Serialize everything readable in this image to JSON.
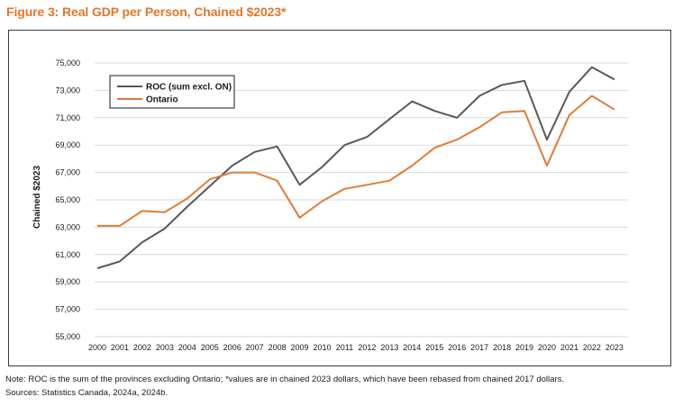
{
  "figure": {
    "title": "Figure 3: Real GDP per Person, Chained $2023*"
  },
  "notes": {
    "note": "Note: ROC is the sum of the provinces excluding Ontario; *values are in chained 2023 dollars, which have been rebased from chained 2017 dollars.",
    "sources": "Sources: Statistics Canada, 2024a, 2024b."
  },
  "chart_data": {
    "type": "line",
    "title": "",
    "xlabel": "",
    "ylabel": "Chained $2023",
    "x": [
      "2000",
      "2001",
      "2002",
      "2003",
      "2004",
      "2005",
      "2006",
      "2007",
      "2008",
      "2009",
      "2010",
      "2011",
      "2012",
      "2013",
      "2014",
      "2015",
      "2016",
      "2017",
      "2018",
      "2019",
      "2020",
      "2021",
      "2022",
      "2023"
    ],
    "ylim": [
      55000,
      75000
    ],
    "yticks": [
      55000,
      57000,
      59000,
      61000,
      63000,
      65000,
      67000,
      69000,
      71000,
      73000,
      75000
    ],
    "ytick_labels": [
      "55,000",
      "57,000",
      "59,000",
      "61,000",
      "63,000",
      "65,000",
      "67,000",
      "69,000",
      "71,000",
      "73,000",
      "75,000"
    ],
    "grid": true,
    "legend_position": "top-left",
    "series": [
      {
        "name": "ROC (sum excl. ON)",
        "color": "#555a5a",
        "values": [
          60000,
          60500,
          61900,
          62900,
          64500,
          66000,
          67500,
          68500,
          68900,
          66100,
          67400,
          69000,
          69600,
          70900,
          72200,
          71500,
          71000,
          72600,
          73400,
          73700,
          69400,
          72900,
          74700,
          73800
        ]
      },
      {
        "name": "Ontario",
        "color": "#e07b3a",
        "values": [
          63100,
          63100,
          64200,
          64100,
          65100,
          66500,
          67000,
          67000,
          66400,
          63700,
          64900,
          65800,
          66100,
          66400,
          67500,
          68800,
          69400,
          70300,
          71400,
          71500,
          67500,
          71200,
          72600,
          71600
        ]
      }
    ]
  }
}
